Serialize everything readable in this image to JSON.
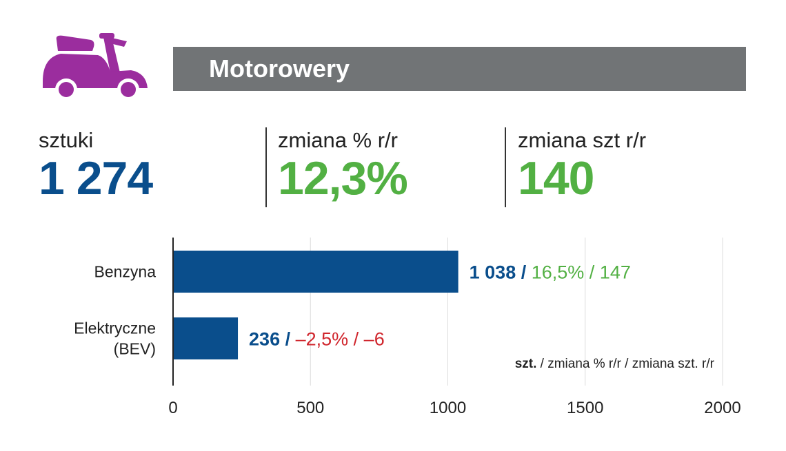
{
  "header": {
    "title": "Motorowery",
    "icon": "scooter-icon",
    "icon_color": "#9b2d9e",
    "bar_color": "#717476"
  },
  "stats": [
    {
      "label": "sztuki",
      "value": "1 274",
      "color": "#0a4e8c"
    },
    {
      "label": "zmiana % r/r",
      "value": "12,3%",
      "color": "#52b043"
    },
    {
      "label": "zmiana szt r/r",
      "value": "140",
      "color": "#52b043"
    }
  ],
  "chart_data": {
    "type": "bar",
    "orientation": "horizontal",
    "categories": [
      "Benzyna",
      "Elektryczne\n(BEV)"
    ],
    "category_lines": [
      [
        "Benzyna"
      ],
      [
        "Elektryczne",
        "(BEV)"
      ]
    ],
    "values": [
      1038,
      236
    ],
    "xlim": [
      0,
      2000
    ],
    "xticks": [
      0,
      500,
      1000,
      1500,
      2000
    ],
    "grid": true,
    "bar_color": "#0a4e8c",
    "labels": [
      {
        "units": "1 038",
        "pct": "16,5%",
        "diff": "147",
        "trend_color": "#52b043"
      },
      {
        "units": "236",
        "pct": "–2,5%",
        "diff": "–6",
        "trend_color": "#d0262d"
      }
    ],
    "unit_note": {
      "bold": "szt.",
      "rest": " / zmiana % r/r / zmiana szt. r/r"
    }
  }
}
